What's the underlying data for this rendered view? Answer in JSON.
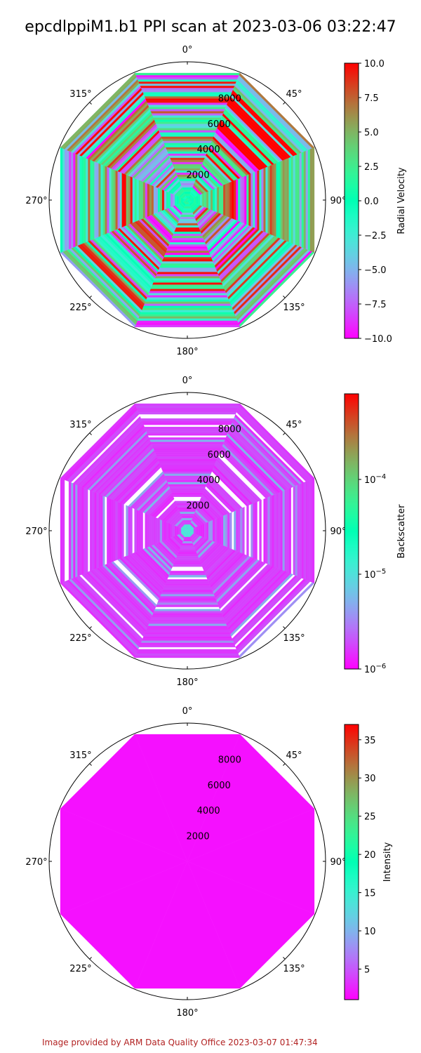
{
  "title": "epcdlppiM1.b1 PPI scan at 2023-03-06 03:22:47",
  "footer": "Image provided by ARM Data Quality Office 2023-03-07 01:47:34",
  "chart_data": [
    {
      "type": "heatmap",
      "projection": "polar",
      "theta_zero": "N",
      "theta_direction": "clockwise",
      "angle_ticks": [
        "0°",
        "45°",
        "90°",
        "135°",
        "180°",
        "225°",
        "270°",
        "315°"
      ],
      "radial_ticks": [
        "2000",
        "4000",
        "6000",
        "8000"
      ],
      "radial_tick_values": [
        2000,
        4000,
        6000,
        8000
      ],
      "rmax": 10000,
      "scan_sectors": 8,
      "colormap": "rainbow",
      "colorbar": {
        "label": "Radial Velocity",
        "scale": "linear",
        "range": [
          -10.0,
          10.0
        ],
        "ticks": [
          "10.0",
          "7.5",
          "5.0",
          "2.5",
          "0.0",
          "−2.5",
          "−5.0",
          "−7.5",
          "−10.0"
        ],
        "tick_values": [
          10,
          7.5,
          5,
          2.5,
          0,
          -2.5,
          -5,
          -7.5,
          -10
        ]
      }
    },
    {
      "type": "heatmap",
      "projection": "polar",
      "theta_zero": "N",
      "theta_direction": "clockwise",
      "angle_ticks": [
        "0°",
        "45°",
        "90°",
        "135°",
        "180°",
        "225°",
        "270°",
        "315°"
      ],
      "radial_ticks": [
        "2000",
        "4000",
        "6000",
        "8000"
      ],
      "radial_tick_values": [
        2000,
        4000,
        6000,
        8000
      ],
      "rmax": 10000,
      "scan_sectors": 8,
      "colormap": "rainbow",
      "colorbar": {
        "label": "Backscatter",
        "scale": "log",
        "range": [
          1e-06,
          0.0008
        ],
        "ticks": [
          "10",
          "10",
          "10"
        ],
        "tick_exponents": [
          "−4",
          "−5",
          "−6"
        ],
        "tick_values": [
          0.0001,
          1e-05,
          1e-06
        ]
      }
    },
    {
      "type": "heatmap",
      "projection": "polar",
      "theta_zero": "N",
      "theta_direction": "clockwise",
      "angle_ticks": [
        "0°",
        "45°",
        "90°",
        "135°",
        "180°",
        "225°",
        "270°",
        "315°"
      ],
      "radial_ticks": [
        "2000",
        "4000",
        "6000",
        "8000"
      ],
      "radial_tick_values": [
        2000,
        4000,
        6000,
        8000
      ],
      "rmax": 10000,
      "scan_sectors": 8,
      "colormap": "rainbow",
      "colorbar": {
        "label": "Intensity",
        "scale": "linear",
        "range": [
          1,
          37
        ],
        "ticks": [
          "35",
          "30",
          "25",
          "20",
          "15",
          "10",
          "5"
        ],
        "tick_values": [
          35,
          30,
          25,
          20,
          15,
          10,
          5
        ]
      }
    }
  ]
}
